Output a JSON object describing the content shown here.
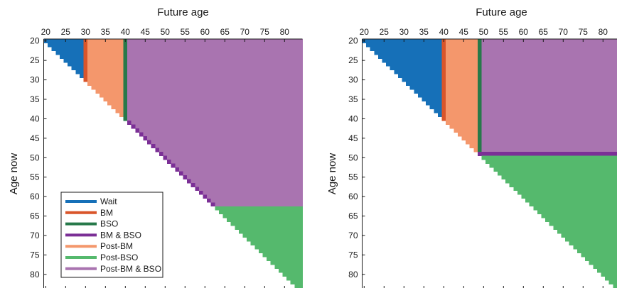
{
  "colors": {
    "wait": "#1670b8",
    "bm": "#d9552a",
    "bso": "#27794a",
    "bm_bso": "#7b2f96",
    "post_bm": "#f4976c",
    "post_bso": "#55b96d",
    "post_bm_bso": "#a974b0",
    "axis": "#1a1a1a"
  },
  "chart_data": [
    {
      "type": "heatmap",
      "xlabel": "Future age",
      "ylabel": "Age now",
      "x_ticks": [
        "20",
        "25",
        "30",
        "35",
        "40",
        "45",
        "50",
        "55",
        "60",
        "65",
        "70",
        "75",
        "80"
      ],
      "y_ticks": [
        "20",
        "25",
        "30",
        "35",
        "40",
        "45",
        "50",
        "55",
        "60",
        "65",
        "70",
        "75",
        "80"
      ],
      "xlim": [
        19.5,
        84.5
      ],
      "ylim": [
        19.5,
        83.5
      ],
      "x_axis_position": "top",
      "y_axis_reversed": true,
      "legend": {
        "placement": "bottom-left",
        "entries": [
          "Wait",
          "BM",
          "BSO",
          "BM & BSO",
          "Post-BM",
          "Post-BSO",
          "Post-BM & BSO"
        ]
      },
      "bm_age": 30,
      "bso_age": 40,
      "regions": [
        {
          "name": "Wait",
          "age_now": [
            20,
            29
          ],
          "future_age": [
            20,
            29
          ]
        },
        {
          "name": "BM",
          "age_now": [
            20,
            30
          ],
          "future_age": [
            30,
            30
          ]
        },
        {
          "name": "Post-BM",
          "age_now": [
            20,
            39
          ],
          "future_age": [
            31,
            39
          ]
        },
        {
          "name": "BSO",
          "age_now": [
            20,
            39
          ],
          "future_age": [
            40,
            40
          ]
        },
        {
          "name": "BM & BSO",
          "age_now": [
            40,
            62
          ],
          "future_age": "diagonal"
        },
        {
          "name": "Post-BM & BSO",
          "age_now": [
            20,
            62
          ],
          "future_age": [
            41,
            84
          ]
        },
        {
          "name": "Post-BSO",
          "age_now": [
            63,
            83
          ],
          "future_age": [
            63,
            84
          ]
        }
      ]
    },
    {
      "type": "heatmap",
      "xlabel": "Future age",
      "ylabel": "Age now",
      "x_ticks": [
        "20",
        "25",
        "30",
        "35",
        "40",
        "45",
        "50",
        "55",
        "60",
        "65",
        "70",
        "75",
        "80"
      ],
      "y_ticks": [
        "20",
        "25",
        "30",
        "35",
        "40",
        "45",
        "50",
        "55",
        "60",
        "65",
        "70",
        "75",
        "80"
      ],
      "xlim": [
        19.5,
        84.5
      ],
      "ylim": [
        19.5,
        83.5
      ],
      "x_axis_position": "top",
      "y_axis_reversed": true,
      "bm_age": 40,
      "bso_age": 49,
      "regions": [
        {
          "name": "Wait",
          "age_now": [
            20,
            39
          ],
          "future_age": [
            20,
            39
          ]
        },
        {
          "name": "BM",
          "age_now": [
            20,
            40
          ],
          "future_age": [
            40,
            40
          ]
        },
        {
          "name": "Post-BM",
          "age_now": [
            20,
            48
          ],
          "future_age": [
            41,
            48
          ]
        },
        {
          "name": "BSO",
          "age_now": [
            20,
            48
          ],
          "future_age": [
            49,
            49
          ]
        },
        {
          "name": "BM & BSO",
          "age_now": [
            49,
            49
          ],
          "future_age": [
            49,
            84
          ]
        },
        {
          "name": "Post-BM & BSO",
          "age_now": [
            20,
            48
          ],
          "future_age": [
            50,
            84
          ]
        },
        {
          "name": "Post-BSO",
          "age_now": [
            50,
            83
          ],
          "future_age": [
            50,
            84
          ]
        }
      ]
    }
  ]
}
